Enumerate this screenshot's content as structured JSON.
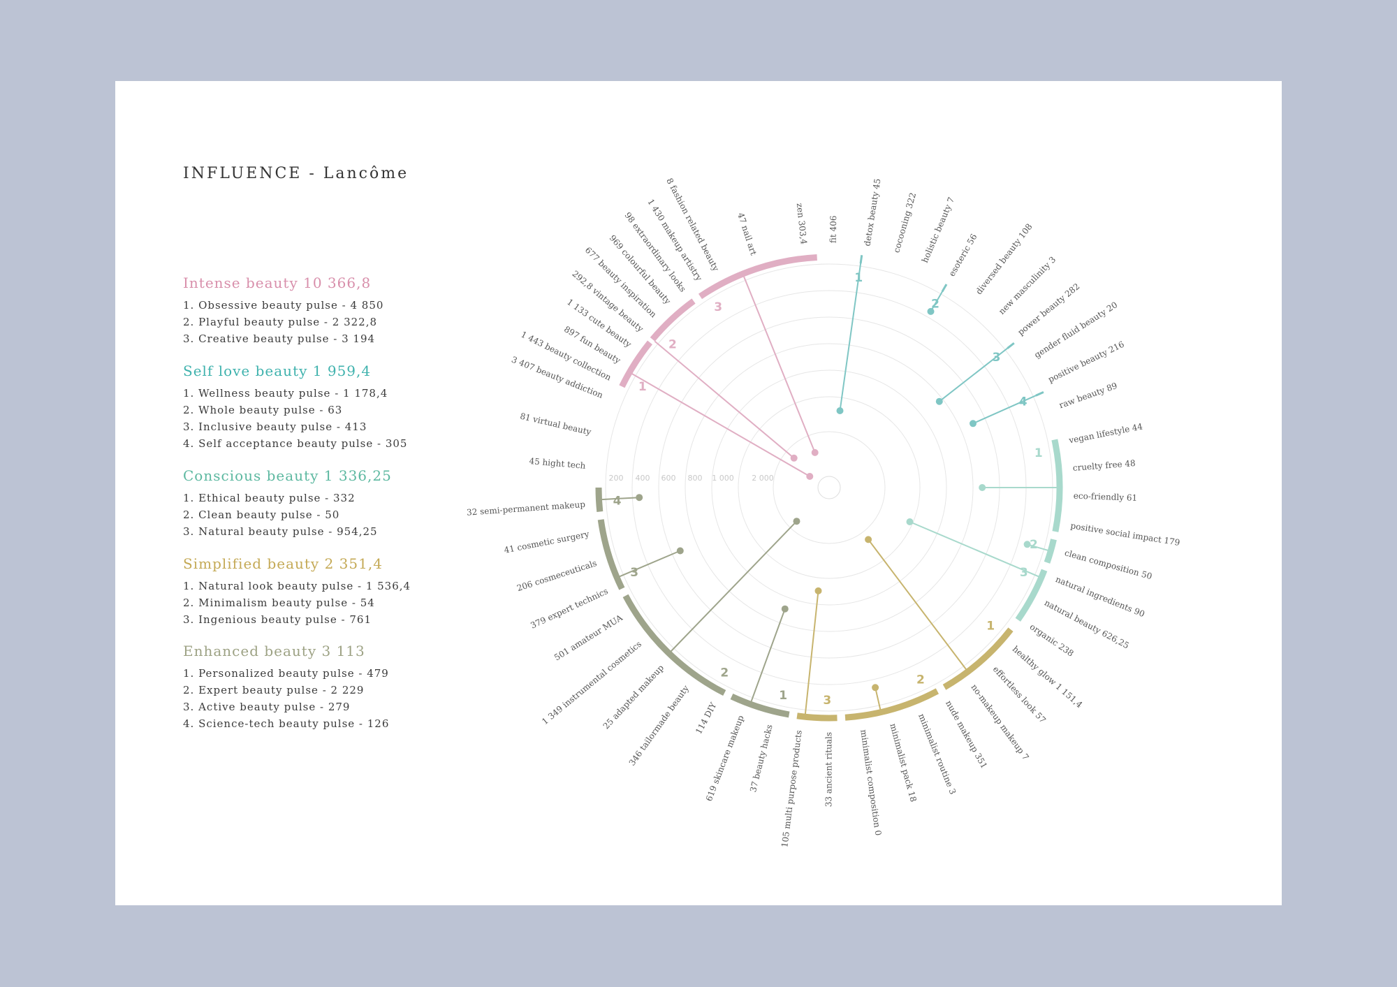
{
  "title": "INFLUENCE - Lancôme",
  "colors": {
    "intense": "#e0aec3",
    "selflove": "#7fc6c4",
    "conscious": "#a8d9cc",
    "simplified": "#c7b46e",
    "enhanced": "#9ea48b",
    "grid": "#e6e6e6",
    "label": "#555555",
    "ring_label": "#c8c8c8"
  },
  "legend": [
    {
      "heading": "Intense beauty 10 366,8",
      "color": "#d88fab",
      "items": [
        "1. Obsessive beauty pulse - 4 850",
        "2. Playful beauty pulse - 2 322,8",
        "3. Creative beauty pulse - 3 194"
      ]
    },
    {
      "heading": "Self love beauty 1 959,4",
      "color": "#3fb2ad",
      "items": [
        "1. Wellness beauty pulse - 1 178,4",
        "2. Whole beauty pulse - 63",
        "3. Inclusive beauty pulse - 413",
        "4. Self acceptance beauty pulse - 305"
      ]
    },
    {
      "heading": "Conscious beauty 1 336,25",
      "color": "#5cb8a0",
      "items": [
        "1. Ethical beauty pulse - 332",
        "2. Clean beauty pulse - 50",
        "3. Natural beauty pulse - 954,25"
      ]
    },
    {
      "heading": "Simplified beauty 2 351,4",
      "color": "#c4a955",
      "items": [
        "1. Natural look beauty pulse - 1 536,4",
        "2. Minimalism beauty pulse - 54",
        "3. Ingenious beauty pulse - 761"
      ]
    },
    {
      "heading": "Enhanced beauty 3 113",
      "color": "#9da284",
      "items": [
        "1. Personalized beauty pulse - 479",
        "2. Expert beauty pulse - 2 229",
        "3. Active beauty pulse - 279",
        "4. Science-tech beauty pulse - 126"
      ]
    }
  ],
  "chart_data": {
    "type": "radial",
    "ring_labels": [
      "200",
      "400",
      "600",
      "800",
      "1 000",
      "2 000"
    ],
    "categories": [
      {
        "name": "Intense beauty",
        "color_key": "intense",
        "arc_start": -64,
        "arc_end": -3,
        "pulses": [
          {
            "label": "1",
            "arc_start": -64,
            "arc_end": -51,
            "value": 4850,
            "spoke_angle": -60
          },
          {
            "label": "2",
            "arc_start": -50,
            "arc_end": -36,
            "value": 2322.8,
            "spoke_angle": -50
          },
          {
            "label": "3",
            "arc_start": -34,
            "arc_end": -3,
            "value": 3194,
            "spoke_angle": -22
          }
        ]
      },
      {
        "name": "Self love beauty",
        "color_key": "selflove",
        "arc_start": 3,
        "arc_end": 74,
        "pulses": [
          {
            "label": "1",
            "arc_start": 8,
            "arc_end": 8,
            "value": 1178.4,
            "spoke_angle": 8
          },
          {
            "label": "2",
            "arc_start": 30,
            "arc_end": 30,
            "value": 63,
            "spoke_angle": 30
          },
          {
            "label": "3",
            "arc_start": 52,
            "arc_end": 52,
            "value": 413,
            "spoke_angle": 52
          },
          {
            "label": "4",
            "arc_start": 66,
            "arc_end": 66,
            "value": 305,
            "spoke_angle": 66
          }
        ]
      },
      {
        "name": "Conscious beauty",
        "color_key": "conscious",
        "arc_start": 78,
        "arc_end": 125,
        "pulses": [
          {
            "label": "1",
            "arc_start": 78,
            "arc_end": 101,
            "value": 332,
            "spoke_angle": 90
          },
          {
            "label": "2",
            "arc_start": 103,
            "arc_end": 109,
            "value": 50,
            "spoke_angle": 106
          },
          {
            "label": "3",
            "arc_start": 111,
            "arc_end": 125,
            "value": 954.25,
            "spoke_angle": 113
          }
        ]
      },
      {
        "name": "Simplified beauty",
        "color_key": "simplified",
        "arc_start": 128,
        "arc_end": 188,
        "pulses": [
          {
            "label": "1",
            "arc_start": 128,
            "arc_end": 150,
            "value": 1536.4,
            "spoke_angle": 143
          },
          {
            "label": "2",
            "arc_start": 152,
            "arc_end": 176,
            "value": 54,
            "spoke_angle": 167
          },
          {
            "label": "3",
            "arc_start": 178,
            "arc_end": 188,
            "value": 761,
            "spoke_angle": 186
          }
        ]
      },
      {
        "name": "Enhanced beauty",
        "color_key": "enhanced",
        "arc_start": 190,
        "arc_end": 270,
        "pulses": [
          {
            "label": "1",
            "arc_start": 190,
            "arc_end": 205,
            "value": 479,
            "spoke_angle": 200
          },
          {
            "label": "2",
            "arc_start": 207,
            "arc_end": 242,
            "value": 2229,
            "spoke_angle": 224
          },
          {
            "label": "3",
            "arc_start": 244,
            "arc_end": 262,
            "value": 279,
            "spoke_angle": 247
          },
          {
            "label": "4",
            "arc_start": 264,
            "arc_end": 270,
            "value": 126,
            "spoke_angle": 267
          }
        ]
      }
    ],
    "topics": [
      {
        "angle": -27.5,
        "text": "8 fashion related beauty"
      },
      {
        "angle": -32,
        "text": "1 430 makeup artistry"
      },
      {
        "angle": -36.5,
        "text": "98 extraordinary looks"
      },
      {
        "angle": -41,
        "text": "969 colourful beauty"
      },
      {
        "angle": -45.5,
        "text": "677 beauty inspiration"
      },
      {
        "angle": -50,
        "text": "292,8 vintage beauty"
      },
      {
        "angle": -54.5,
        "text": "1 133 cute beauty"
      },
      {
        "angle": -59,
        "text": "897 fun beauty"
      },
      {
        "angle": -63.5,
        "text": "1 443 beauty collection"
      },
      {
        "angle": -68,
        "text": "3 407 beauty addiction"
      },
      {
        "angle": -18,
        "text": "47 nail art"
      },
      {
        "angle": -6,
        "text": "zen 303,4"
      },
      {
        "angle": 1,
        "text": "fit 406"
      },
      {
        "angle": 9,
        "text": "detox beauty 45"
      },
      {
        "angle": 16,
        "text": "cocooning 322"
      },
      {
        "angle": 23,
        "text": "holistic beauty 7"
      },
      {
        "angle": 30,
        "text": "esoteric 56"
      },
      {
        "angle": 37.5,
        "text": "diversed beauty 108"
      },
      {
        "angle": 44.5,
        "text": "new masculinity 3"
      },
      {
        "angle": 51,
        "text": "power beauty 282"
      },
      {
        "angle": 57.5,
        "text": "gender fluid beauty 20"
      },
      {
        "angle": 64,
        "text": "positive beauty 216"
      },
      {
        "angle": 70.5,
        "text": "raw beauty 89"
      },
      {
        "angle": 79,
        "text": "vegan lifestyle 44"
      },
      {
        "angle": 85.5,
        "text": "cruelty free 48"
      },
      {
        "angle": 92,
        "text": "eco-friendly 61"
      },
      {
        "angle": 99,
        "text": "positive social impact 179"
      },
      {
        "angle": 105.5,
        "text": "clean composition 50"
      },
      {
        "angle": 112,
        "text": "natural ingredients 90"
      },
      {
        "angle": 118,
        "text": "natural beauty 626,25"
      },
      {
        "angle": 124.5,
        "text": "organic 238"
      },
      {
        "angle": 131,
        "text": "healthy glow 1 151,4"
      },
      {
        "angle": 137.5,
        "text": "effortless look 57"
      },
      {
        "angle": 144,
        "text": "no-makeup makeup 7"
      },
      {
        "angle": 151,
        "text": "nude makeup 351"
      },
      {
        "angle": 158,
        "text": "minimalist routine 3"
      },
      {
        "angle": 165,
        "text": "minimalist pack 18"
      },
      {
        "angle": 172,
        "text": "minimalist composition 0"
      },
      {
        "angle": 180,
        "text": "33 ancient rituals"
      },
      {
        "angle": 187,
        "text": "105 multi purpose products"
      },
      {
        "angle": 194,
        "text": "37 beauty hacks"
      },
      {
        "angle": 201,
        "text": "619 skincare makeup"
      },
      {
        "angle": 208,
        "text": "114 DIY"
      },
      {
        "angle": 215.5,
        "text": "346 tailormade beauty"
      },
      {
        "angle": 223,
        "text": "25 adapted makeup"
      },
      {
        "angle": 230.5,
        "text": "1 349 instrumental cosmetics"
      },
      {
        "angle": 238,
        "text": "501 amateur MUA"
      },
      {
        "angle": 245,
        "text": "379 expert technics"
      },
      {
        "angle": 252,
        "text": "206 cosmeceuticals"
      },
      {
        "angle": 259,
        "text": "41 cosmetic surgery"
      },
      {
        "angle": 266,
        "text": "32 semi-permanent makeup"
      },
      {
        "angle": 275,
        "text": "45 hight tech"
      },
      {
        "angle": 283,
        "text": "81 virtual beauty"
      }
    ]
  }
}
